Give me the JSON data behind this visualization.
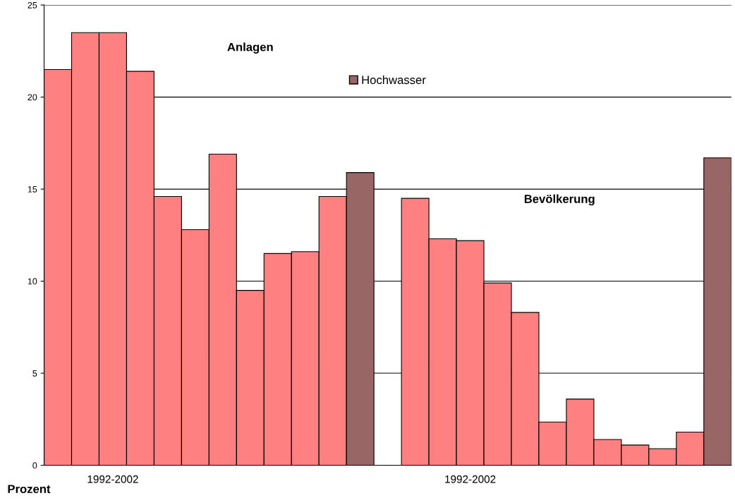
{
  "chart_data": {
    "type": "bar",
    "ylabel": "Prozent",
    "categories": [
      null,
      null,
      "1992-2002",
      null,
      null,
      null,
      null,
      null,
      null,
      null,
      null,
      null,
      null,
      null,
      null,
      "1992-2002",
      null,
      null,
      null,
      null,
      null,
      null,
      null,
      null,
      null
    ],
    "series": [
      {
        "color": "#ff8080",
        "values": [
          21.5,
          23.5,
          23.5,
          21.4,
          14.6,
          12.8,
          16.9,
          9.5,
          11.5,
          11.6,
          14.6,
          null,
          null,
          14.5,
          12.3,
          12.2,
          9.9,
          8.3,
          2.35,
          3.6,
          1.4,
          1.1,
          0.9,
          1.8,
          null
        ]
      },
      {
        "name": "Hochwasser",
        "color": "#996666",
        "values": [
          null,
          null,
          null,
          null,
          null,
          null,
          null,
          null,
          null,
          null,
          null,
          15.9,
          null,
          null,
          null,
          null,
          null,
          null,
          null,
          null,
          null,
          null,
          null,
          null,
          16.7
        ]
      }
    ],
    "ylim": [
      0,
      25
    ],
    "yticks": [
      0,
      5,
      10,
      15,
      20,
      25
    ],
    "grid": "y",
    "legend": "top",
    "annotations": [
      "Anlagen",
      "Bevölkerung"
    ]
  }
}
